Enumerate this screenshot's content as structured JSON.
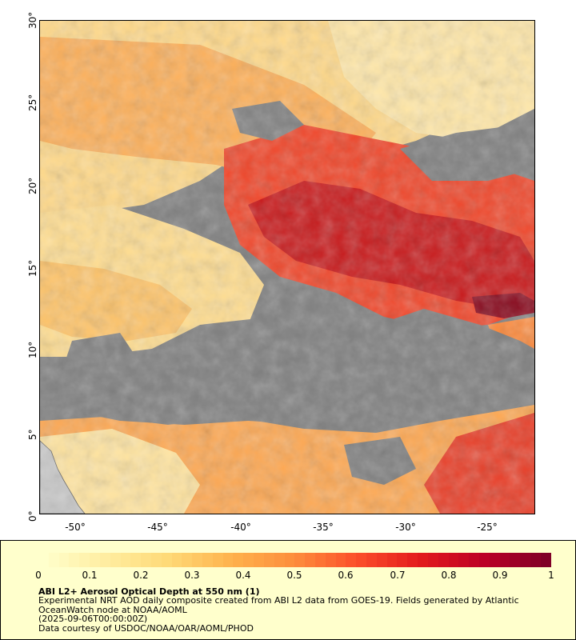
{
  "map": {
    "y_ticks": [
      "30°",
      "25°",
      "20°",
      "15°",
      "10°",
      "5°",
      "0°"
    ],
    "x_ticks": [
      "-50°",
      "-45°",
      "-40°",
      "-35°",
      "-30°",
      "-25°"
    ],
    "lat_range": [
      0,
      30
    ],
    "lon_range": [
      -52.2,
      -22.3
    ],
    "colors": {
      "no_data": "#808080",
      "land": "#c8c8c8",
      "frame_background": "#ffffff",
      "legend_background": "#ffffcc"
    }
  },
  "legend": {
    "colorbar_labels": [
      "0",
      "0.1",
      "0.2",
      "0.3",
      "0.4",
      "0.5",
      "0.6",
      "0.7",
      "0.8",
      "0.9",
      "1"
    ],
    "colorbar_range": [
      0,
      1
    ],
    "colorbar_colors": [
      "#ffffcc",
      "#ffeda0",
      "#fed976",
      "#feb24c",
      "#fd8d3c",
      "#fc4e2a",
      "#e31a1c",
      "#bd0026",
      "#800026"
    ],
    "title": "ABI L2+ Aerosol Optical Depth at 550 nm (1)",
    "line1": "Experimental NRT AOD daily composite created from ABI L2 data from GOES-19. Fields generated by Atlantic OceanWatch node at NOAA/AOML",
    "line2": "(2025-09-06T00:00:00Z)",
    "line3": "Data courtesy of USDOC/NOAA/OAR/AOML/PHOD"
  }
}
